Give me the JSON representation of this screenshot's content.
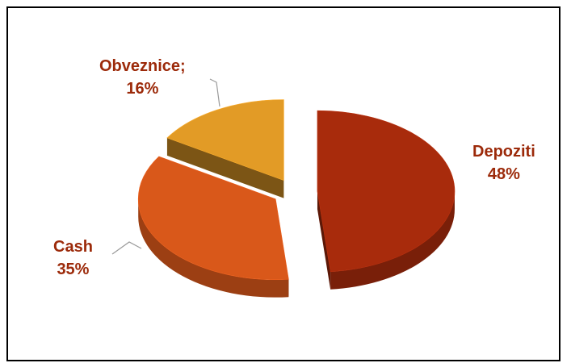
{
  "chart_data": {
    "type": "pie",
    "title": "",
    "slices": [
      {
        "label": "Depoziti",
        "value_text": "48%",
        "value": 48,
        "color": "#a82b0c",
        "separator": " "
      },
      {
        "label": "Cash",
        "value_text": "35%",
        "value": 35,
        "color": "#d9581a",
        "separator": " "
      },
      {
        "label": "Obveznice;",
        "value_text": "16%",
        "value": 16,
        "color": "#e29b26",
        "separator": " "
      }
    ],
    "label_color": "#9c2a0a",
    "style": "3d-exploded"
  }
}
